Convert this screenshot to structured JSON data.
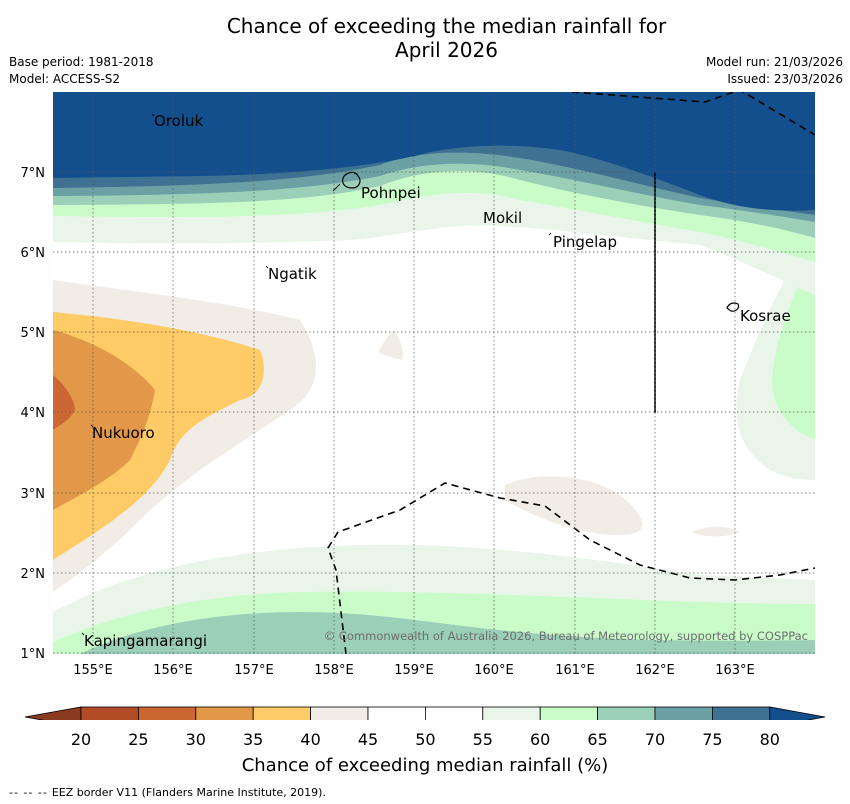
{
  "title": {
    "line1": "Chance of exceeding the median rainfall for",
    "line2": "April 2026"
  },
  "meta_left": {
    "base_period": "Base period: 1981-2018",
    "model": "Model: ACCESS-S2"
  },
  "meta_right": {
    "model_run": "Model run: 21/03/2026",
    "issued": "Issued: 23/03/2026"
  },
  "axes": {
    "lat_labels": [
      "7°N",
      "6°N",
      "5°N",
      "4°N",
      "3°N",
      "2°N",
      "1°N"
    ],
    "lon_labels": [
      "155°E",
      "156°E",
      "157°E",
      "158°E",
      "159°E",
      "160°E",
      "161°E",
      "162°E",
      "163°E"
    ]
  },
  "places": [
    {
      "name": "Oroluk"
    },
    {
      "name": "Pohnpei"
    },
    {
      "name": "Mokil"
    },
    {
      "name": "Pingelap"
    },
    {
      "name": "Ngatik"
    },
    {
      "name": "Kosrae"
    },
    {
      "name": "Nukuoro"
    },
    {
      "name": "Kapingamarangi"
    }
  ],
  "copyright": "© Commonwealth of Australia 2026, Bureau of Meteorology, supported by COSPPac",
  "colorbar": {
    "title": "Chance of exceeding median rainfall (%)",
    "ticks": [
      "20",
      "25",
      "30",
      "35",
      "40",
      "45",
      "50",
      "55",
      "60",
      "65",
      "70",
      "75",
      "80"
    ],
    "colors": {
      "below20": "#8a3a1e",
      "c20_25": "#b34b26",
      "c25_30": "#cc6633",
      "c30_35": "#e29848",
      "c35_40": "#fecb66",
      "c40_45": "#f1ece6",
      "c45_55": "#ffffff",
      "c55_60": "#eaf5e9",
      "c60_65": "#cafcca",
      "c65_70": "#9ccfb8",
      "c70_75": "#6ba1a4",
      "c75_80": "#3f7193",
      "above80": "#134f8c"
    }
  },
  "footer": {
    "dash": "--  --  --",
    "text": "EEZ border V11 (Flanders Marine Institute, 2019)."
  }
}
